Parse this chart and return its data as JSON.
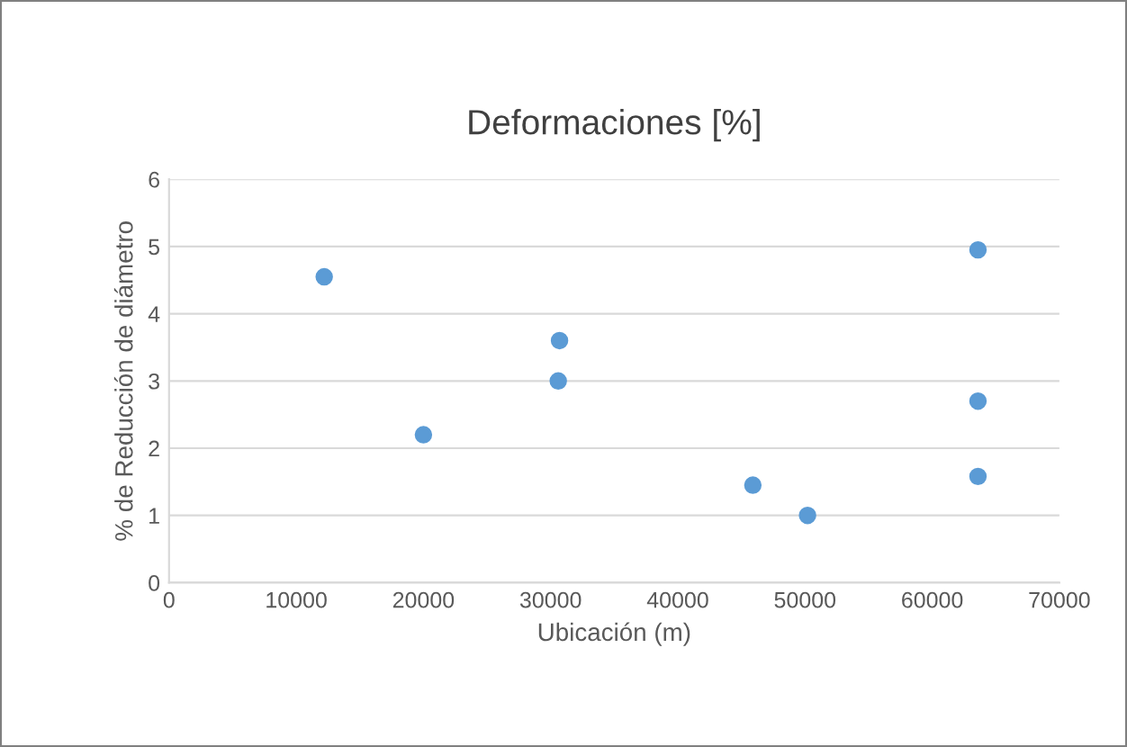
{
  "chart_data": {
    "type": "scatter",
    "title": "Deformaciones [%]",
    "xlabel": "Ubicación (m)",
    "ylabel": "% de Reducción de diámetro",
    "x": [
      12200,
      20000,
      30700,
      30600,
      45900,
      50200,
      63600,
      63600,
      63600
    ],
    "values": [
      4.55,
      2.2,
      3.6,
      3.0,
      1.45,
      1.0,
      4.95,
      2.7,
      1.58
    ],
    "color": "#5b9bd5",
    "marker": "circle",
    "xlim": [
      0,
      70000
    ],
    "xticks": [
      0,
      10000,
      20000,
      30000,
      40000,
      50000,
      60000,
      70000
    ],
    "ylim": [
      0,
      6
    ],
    "yticks": [
      0,
      1,
      2,
      3,
      4,
      5,
      6
    ],
    "grid": "y",
    "legend": false
  }
}
